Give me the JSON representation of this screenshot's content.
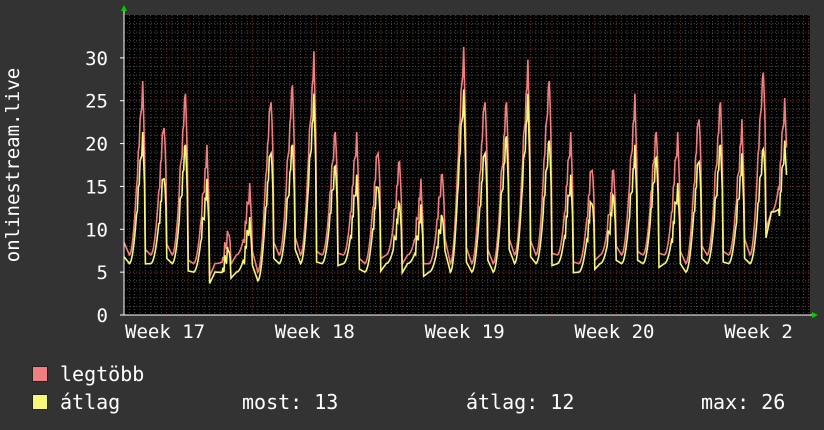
{
  "colors": {
    "background": "#333333",
    "plot_background": "#000000",
    "major_grid": "#8a2a2a",
    "minor_grid": "#4a4a4a",
    "axis_arrow": "#00cc00"
  },
  "legend": {
    "items": [
      {
        "label": "legtöbb",
        "color": "#f07f7f"
      },
      {
        "label": "átlag",
        "color": "#f7f77a"
      }
    ]
  },
  "stats": {
    "most": "most: 13",
    "atlag": "átlag: 12",
    "max": "max: 26"
  },
  "chart_data": {
    "type": "line",
    "ylabel": "onlinestream.live",
    "xlabel": "",
    "ylim": [
      0,
      35
    ],
    "yticks": [
      0,
      5,
      10,
      15,
      20,
      25,
      30
    ],
    "x_domain_days": [
      0,
      30.6
    ],
    "xticks": [
      {
        "label": "Week 17",
        "x": 0
      },
      {
        "label": "Week 18",
        "x": 7
      },
      {
        "label": "Week 19",
        "x": 14
      },
      {
        "label": "Week 20",
        "x": 21
      },
      {
        "label": "Week 2",
        "x": 28
      }
    ],
    "grid": true,
    "legend_position": "bottom-left",
    "series": [
      {
        "name": "legtöbb",
        "color": "#f07f7f",
        "daily_peaks": [
          27,
          23,
          26,
          19,
          10,
          15,
          26,
          27,
          30,
          22,
          21,
          20,
          18,
          15,
          17,
          31,
          26,
          25,
          29,
          28,
          21,
          18,
          17,
          25,
          22,
          21,
          24,
          25,
          22,
          29,
          25
        ],
        "daily_troughs": [
          7,
          7,
          7,
          6,
          6,
          7,
          5,
          7,
          7,
          7,
          7,
          6,
          7,
          7,
          6,
          6,
          6,
          6,
          7,
          7,
          7,
          6,
          7,
          7,
          7,
          7,
          6,
          7,
          7,
          7,
          12
        ]
      },
      {
        "name": "átlag",
        "color": "#f7f77a",
        "daily_peaks": [
          21,
          17,
          20,
          15,
          8,
          11,
          20,
          20,
          25,
          18,
          16,
          16,
          13,
          12,
          12,
          26,
          20,
          21,
          25,
          21,
          16,
          14,
          14,
          19,
          19,
          15,
          19,
          20,
          18,
          20,
          20
        ],
        "daily_troughs": [
          6,
          6,
          6,
          5,
          5,
          5,
          4,
          6,
          6,
          6,
          6,
          5,
          6,
          6,
          5,
          5,
          5,
          5,
          6,
          6,
          6,
          5,
          6,
          6,
          6,
          6,
          5,
          6,
          6,
          6,
          12
        ]
      }
    ]
  }
}
